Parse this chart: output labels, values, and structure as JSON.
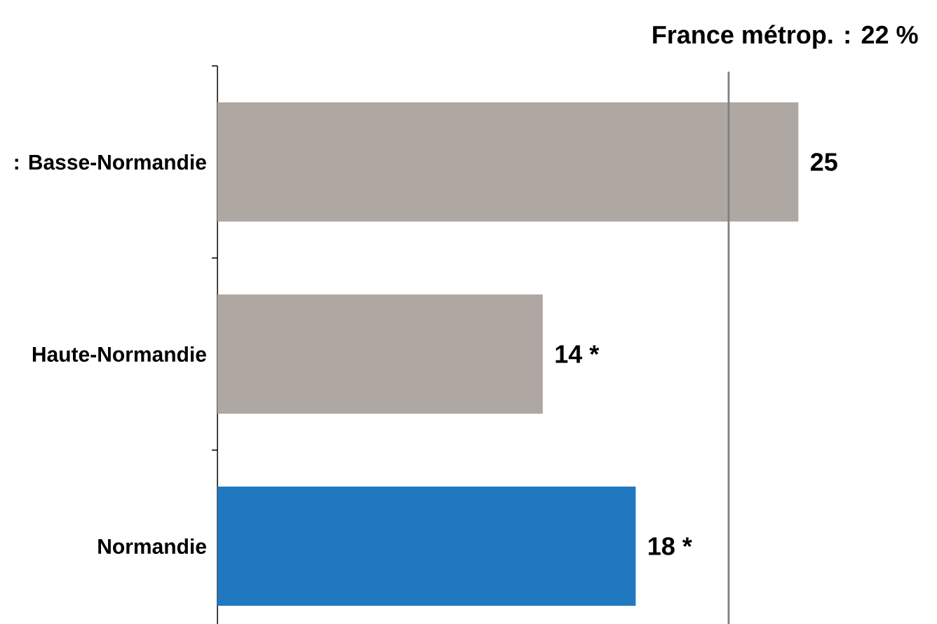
{
  "chart_data": {
    "type": "bar",
    "orientation": "horizontal",
    "categories": [
      ": Basse-Normandie",
      "Haute-Normandie",
      "Normandie"
    ],
    "values": [
      25,
      14,
      18
    ],
    "colors": [
      "#afa7a2",
      "#afa7a2",
      "#1f78c0"
    ],
    "value_labels": [
      "25",
      "14 *",
      "18 *"
    ],
    "tick_labels": "y",
    "ref_lines": [
      {
        "axis": "x",
        "value": 22,
        "label": "France métrop. : 22 %",
        "color": "#808080"
      }
    ]
  }
}
